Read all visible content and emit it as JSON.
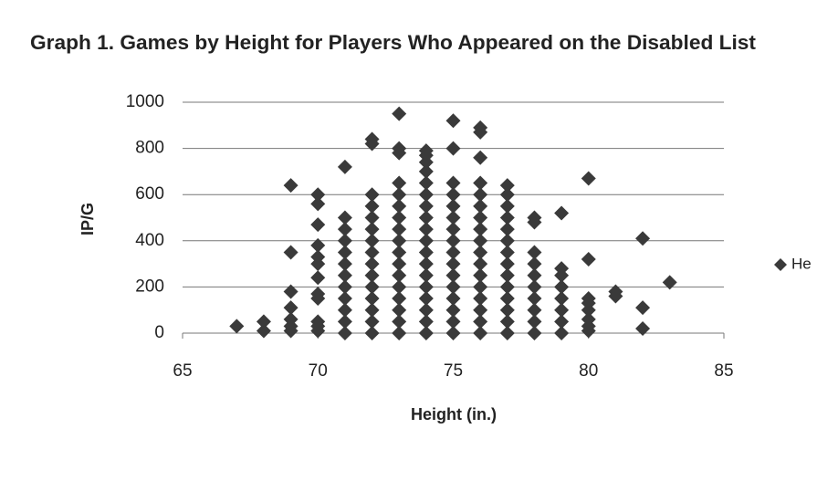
{
  "chart_data": {
    "type": "scatter",
    "title": "Graph 1. Games by Height for Players Who Appeared on the Disabled List",
    "x_label": "Height (in.)",
    "y_label": "IP/G",
    "xlim": [
      65,
      85
    ],
    "xticks": [
      65,
      70,
      75,
      80,
      85
    ],
    "ylim": [
      0,
      1000
    ],
    "yticks": [
      0,
      200,
      400,
      600,
      800,
      1000
    ],
    "grid": true,
    "legend": "right",
    "x": [
      67,
      68,
      68,
      69,
      69,
      69,
      69,
      69,
      69,
      69,
      70,
      70,
      70,
      70,
      70,
      70,
      70,
      70,
      70,
      70,
      70,
      70,
      71,
      71,
      71,
      71,
      71,
      71,
      71,
      71,
      71,
      71,
      71,
      71,
      72,
      72,
      72,
      72,
      72,
      72,
      72,
      72,
      72,
      72,
      72,
      72,
      72,
      72,
      72,
      73,
      73,
      73,
      73,
      73,
      73,
      73,
      73,
      73,
      73,
      73,
      73,
      73,
      73,
      73,
      73,
      73,
      74,
      74,
      74,
      74,
      74,
      74,
      74,
      74,
      74,
      74,
      74,
      74,
      74,
      74,
      74,
      74,
      74,
      74,
      75,
      75,
      75,
      75,
      75,
      75,
      75,
      75,
      75,
      75,
      75,
      75,
      75,
      75,
      75,
      75,
      76,
      76,
      76,
      76,
      76,
      76,
      76,
      76,
      76,
      76,
      76,
      76,
      76,
      76,
      76,
      76,
      76,
      77,
      77,
      77,
      77,
      77,
      77,
      77,
      77,
      77,
      77,
      77,
      77,
      77,
      77,
      78,
      78,
      78,
      78,
      78,
      78,
      78,
      78,
      78,
      78,
      79,
      79,
      79,
      79,
      79,
      79,
      79,
      79,
      80,
      80,
      80,
      80,
      80,
      80,
      80,
      80,
      81,
      81,
      82,
      82,
      82,
      83
    ],
    "series": [
      {
        "name": "He",
        "color": "#3a3a3a",
        "values": [
          30,
          10,
          50,
          10,
          30,
          60,
          110,
          180,
          350,
          640,
          10,
          30,
          50,
          150,
          170,
          240,
          300,
          330,
          380,
          470,
          560,
          600,
          0,
          50,
          100,
          150,
          200,
          250,
          300,
          350,
          400,
          450,
          500,
          720,
          0,
          50,
          100,
          150,
          200,
          250,
          300,
          350,
          400,
          450,
          500,
          550,
          600,
          820,
          840,
          0,
          50,
          100,
          150,
          200,
          250,
          300,
          350,
          400,
          450,
          500,
          550,
          600,
          650,
          780,
          800,
          950,
          0,
          50,
          100,
          150,
          200,
          250,
          300,
          350,
          400,
          450,
          500,
          550,
          600,
          650,
          700,
          740,
          770,
          790,
          0,
          50,
          100,
          150,
          200,
          250,
          300,
          350,
          400,
          450,
          500,
          550,
          600,
          650,
          800,
          920,
          0,
          50,
          100,
          150,
          200,
          250,
          300,
          350,
          400,
          450,
          500,
          550,
          600,
          650,
          760,
          870,
          890,
          0,
          50,
          100,
          150,
          200,
          250,
          300,
          350,
          400,
          450,
          500,
          550,
          600,
          640,
          0,
          50,
          100,
          150,
          200,
          250,
          300,
          350,
          480,
          500,
          0,
          50,
          100,
          150,
          200,
          250,
          280,
          520,
          10,
          30,
          60,
          100,
          130,
          150,
          320,
          670,
          160,
          180,
          20,
          110,
          410,
          220
        ]
      }
    ]
  }
}
